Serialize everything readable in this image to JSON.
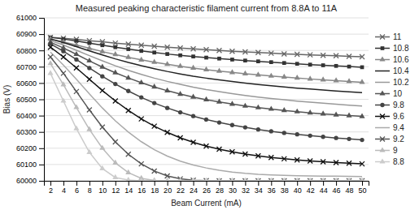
{
  "chart_data": {
    "type": "line",
    "title": "Measured peaking characteristic filament current from 8.8A to 11A",
    "xlabel": "Beam Current (mA)",
    "ylabel": "Bias (V)",
    "x": [
      2,
      4,
      6,
      8,
      10,
      12,
      14,
      16,
      18,
      20,
      22,
      24,
      26,
      28,
      30,
      32,
      34,
      36,
      38,
      40,
      42,
      44,
      46,
      48,
      50
    ],
    "xlim": [
      1,
      51
    ],
    "xticks": [
      2,
      4,
      6,
      8,
      10,
      12,
      14,
      16,
      18,
      20,
      22,
      24,
      26,
      28,
      30,
      32,
      34,
      36,
      38,
      40,
      42,
      44,
      46,
      48,
      50
    ],
    "ylim": [
      60000,
      61000
    ],
    "yticks": [
      60000,
      60100,
      60200,
      60300,
      60400,
      60500,
      60600,
      60700,
      60800,
      60900,
      61000
    ],
    "grid": true,
    "legend": "right",
    "series": [
      {
        "name": "11",
        "color": "#666666",
        "marker": "x",
        "values": [
          60880,
          60875,
          60868,
          60860,
          60853,
          60845,
          60838,
          60832,
          60826,
          60820,
          60815,
          60810,
          60805,
          60800,
          60795,
          60791,
          60787,
          60783,
          60779,
          60776,
          60773,
          60770,
          60767,
          60764,
          60761
        ]
      },
      {
        "name": "10.8",
        "color": "#333333",
        "marker": "square",
        "values": [
          60880,
          60870,
          60858,
          60845,
          60832,
          60820,
          60808,
          60797,
          60787,
          60778,
          60770,
          60763,
          60756,
          60750,
          60744,
          60738,
          60733,
          60728,
          60723,
          60718,
          60713,
          60709,
          60705,
          60701,
          60697
        ]
      },
      {
        "name": "10.6",
        "color": "#888888",
        "marker": "triangle",
        "values": [
          60870,
          60852,
          60833,
          60813,
          60793,
          60775,
          60758,
          60742,
          60728,
          60715,
          60703,
          60692,
          60682,
          60673,
          60665,
          60657,
          60650,
          60643,
          60637,
          60631,
          60625,
          60620,
          60615,
          60610,
          60605
        ]
      },
      {
        "name": "10.4",
        "color": "#222222",
        "marker": "none",
        "values": [
          60870,
          60848,
          60823,
          60797,
          60772,
          60748,
          60726,
          60706,
          60688,
          60671,
          60656,
          60642,
          60630,
          60619,
          60609,
          60600,
          60591,
          60583,
          60576,
          60569,
          60563,
          60557,
          60551,
          60546,
          60541
        ]
      },
      {
        "name": "10.2",
        "color": "#999999",
        "marker": "none",
        "values": [
          60860,
          60833,
          60801,
          60768,
          60736,
          60706,
          60678,
          60653,
          60630,
          60610,
          60592,
          60575,
          60560,
          60547,
          60535,
          60524,
          60514,
          60505,
          60497,
          60489,
          60482,
          60476,
          60470,
          60464,
          60459
        ]
      },
      {
        "name": "10",
        "color": "#555555",
        "marker": "triangle",
        "values": [
          60850,
          60815,
          60776,
          60736,
          60698,
          60663,
          60631,
          60602,
          60576,
          60553,
          60532,
          60514,
          60498,
          60484,
          60471,
          60459,
          60449,
          60440,
          60432,
          60424,
          60417,
          60411,
          60405,
          60400,
          60395
        ]
      },
      {
        "name": "9.8",
        "color": "#444444",
        "marker": "circle",
        "values": [
          60840,
          60795,
          60744,
          60692,
          60641,
          60594,
          60551,
          60512,
          60477,
          60447,
          60420,
          60397,
          60376,
          60358,
          60342,
          60328,
          60315,
          60304,
          60294,
          60285,
          60277,
          60270,
          60263,
          60257,
          60251
        ]
      },
      {
        "name": "9.6",
        "color": "#111111",
        "marker": "x",
        "values": [
          60820,
          60760,
          60693,
          60623,
          60554,
          60490,
          60432,
          60380,
          60335,
          60297,
          60264,
          60236,
          60213,
          60194,
          60178,
          60164,
          60153,
          60143,
          60135,
          60128,
          60122,
          60117,
          60112,
          60108,
          60104
        ]
      },
      {
        "name": "9.4",
        "color": "#aaaaaa",
        "marker": "none",
        "values": [
          60790,
          60710,
          60623,
          60533,
          60447,
          60368,
          60299,
          60240,
          60191,
          60152,
          60121,
          60097,
          60079,
          60065,
          60054,
          60046,
          60040,
          60036,
          60033,
          60031,
          60030,
          60029,
          60028,
          60027,
          60026
        ]
      },
      {
        "name": "9.2",
        "color": "#555555",
        "marker": "x",
        "values": [
          60760,
          60660,
          60548,
          60435,
          60330,
          60239,
          60163,
          60104,
          60060,
          60030,
          60012,
          60004,
          60001,
          60000,
          60000,
          60000,
          60000,
          60000,
          60000,
          60000,
          60000,
          60000,
          60000,
          60000,
          60000
        ]
      },
      {
        "name": "9",
        "color": "#bbbbbb",
        "marker": "triangle",
        "values": [
          60720,
          60590,
          60450,
          60315,
          60200,
          60110,
          60050,
          60015,
          60002,
          60000,
          60000,
          60000,
          60000,
          60000,
          60000,
          60000,
          60000,
          60000,
          60000,
          60000,
          60000,
          60000,
          60000,
          60000,
          60000
        ]
      },
      {
        "name": "8.8",
        "color": "#cccccc",
        "marker": "triangle",
        "values": [
          60660,
          60490,
          60320,
          60175,
          60075,
          60020,
          60005,
          60000,
          60000,
          60000,
          60000,
          60000,
          60000,
          60000,
          60000,
          60000,
          60000,
          60000,
          60000,
          60000,
          60000,
          60000,
          60000,
          60000,
          60000
        ]
      }
    ]
  }
}
